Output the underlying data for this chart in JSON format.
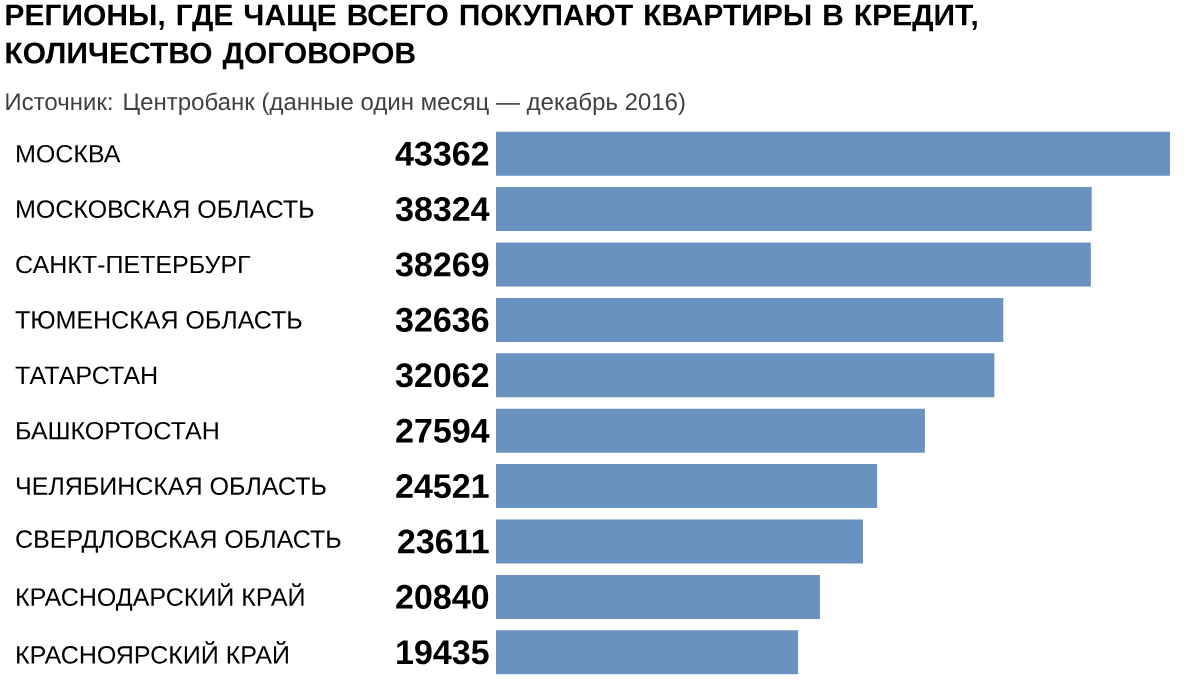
{
  "chart_data": {
    "type": "bar",
    "orientation": "horizontal",
    "title": "РЕГИОНЫ, ГДЕ ЧАЩЕ ВСЕГО ПОКУПАЮТ КВАРТИРЫ В КРЕДИТ, КОЛИЧЕСТВО ДОГОВОРОВ",
    "subtitle": "Источник: Центробанк (данные один месяц — декабрь 2016)",
    "categories": [
      "МОСКВА",
      "МОСКОВСКАЯ ОБЛАСТЬ",
      "САНКТ-ПЕТЕРБУРГ",
      "ТЮМЕНСКАЯ ОБЛАСТЬ",
      "ТАТАРСТАН",
      "БАШКОРТОСТАН",
      "ЧЕЛЯБИНСКАЯ ОБЛАСТЬ",
      "СВЕРДЛОВСКАЯ ОБЛАСТЬ",
      "КРАСНОДАРСКИЙ КРАЙ",
      "КРАСНОЯРСКИЙ КРАЙ"
    ],
    "values": [
      43362,
      38324,
      38269,
      32636,
      32062,
      27594,
      24521,
      23611,
      20840,
      19435
    ],
    "color": "#6a92c0",
    "data_labels": true
  }
}
